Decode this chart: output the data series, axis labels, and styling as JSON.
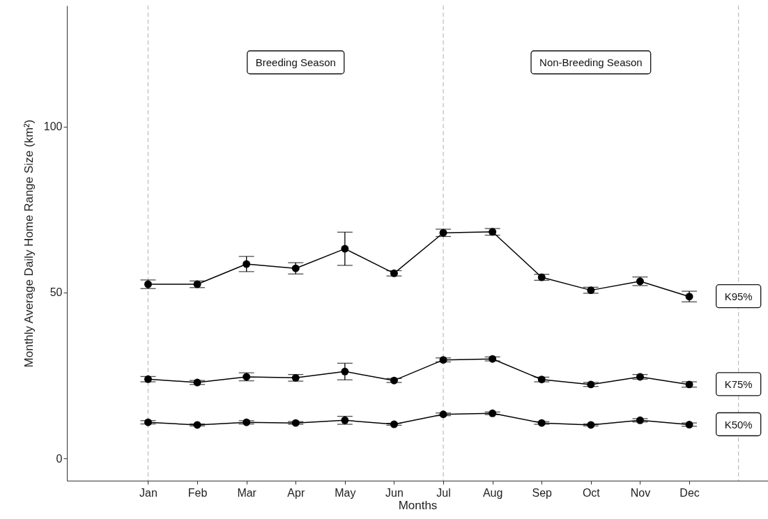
{
  "chart_data": {
    "type": "line",
    "xlabel": "Months",
    "ylabel": "Monthly Average Daily Home Range Size (km²)",
    "categories": [
      "Jan",
      "Feb",
      "Mar",
      "Apr",
      "May",
      "Jun",
      "Jul",
      "Aug",
      "Sep",
      "Oct",
      "Nov",
      "Dec",
      null
    ],
    "ylim": [
      -6.7,
      136.5
    ],
    "yticks": [
      0,
      50,
      100
    ],
    "series": [
      {
        "name": "K95%",
        "color": "#000000",
        "values": [
          52.5,
          52.5,
          58.6,
          57.3,
          63.2,
          55.8,
          68.0,
          68.3,
          54.6,
          50.7,
          53.4,
          48.8,
          null
        ],
        "errors": [
          1.3,
          1.0,
          2.3,
          1.7,
          5.0,
          0.8,
          1.1,
          1.0,
          0.9,
          0.9,
          1.3,
          1.6,
          null
        ]
      },
      {
        "name": "K75%",
        "color": "#000000",
        "values": [
          23.9,
          22.9,
          24.6,
          24.3,
          26.2,
          23.5,
          29.7,
          30.0,
          23.8,
          22.3,
          24.6,
          22.3,
          null
        ],
        "errors": [
          0.8,
          0.6,
          1.2,
          1.0,
          2.5,
          0.6,
          0.6,
          0.6,
          0.7,
          0.6,
          0.7,
          0.8,
          null
        ]
      },
      {
        "name": "K50%",
        "color": "#000000",
        "values": [
          10.9,
          10.1,
          10.9,
          10.7,
          11.5,
          10.3,
          13.3,
          13.6,
          10.7,
          10.1,
          11.5,
          10.2,
          null
        ],
        "errors": [
          0.5,
          0.3,
          0.5,
          0.4,
          1.2,
          0.3,
          0.4,
          0.4,
          0.4,
          0.3,
          0.5,
          0.5,
          null
        ]
      }
    ],
    "ref_lines": [
      {
        "axis": "x",
        "value": "Jan",
        "color": "#bbbbbb",
        "line_style": "dashed"
      },
      {
        "axis": "x",
        "value": "Jul",
        "color": "#bbbbbb",
        "line_style": "dashed"
      },
      {
        "axis": "x",
        "color": "#bbbbbb",
        "line_style": "dashed"
      }
    ],
    "annotations": [
      "Breeding Season",
      "Non-Breeding Season"
    ],
    "marker": "circle",
    "line_style": "solid"
  }
}
